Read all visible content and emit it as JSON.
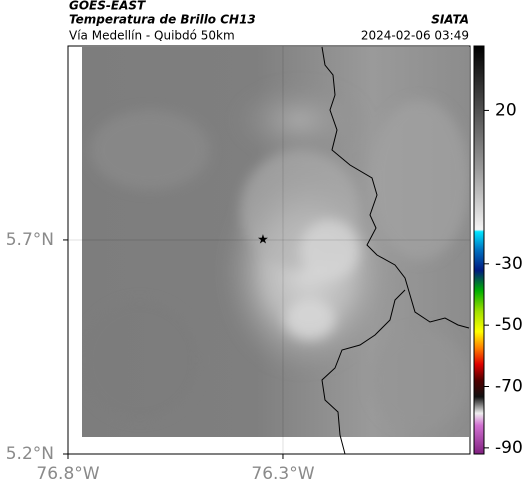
{
  "header": {
    "source": "GOES-EAST",
    "title": "Temperatura de Brillo CH13",
    "subtitle": "Vía Medellín - Quibdó 50km",
    "credit": "SIATA",
    "timestamp": "2024-02-06 03:49"
  },
  "map": {
    "xlim": [
      -76.8,
      -75.865
    ],
    "ylim": [
      5.2,
      6.153
    ],
    "xticks": [
      {
        "value": -76.8,
        "label": "76.8°W"
      },
      {
        "value": -76.3,
        "label": "76.3°W"
      }
    ],
    "yticks": [
      {
        "value": 5.2,
        "label": "5.2°N"
      },
      {
        "value": 5.7,
        "label": "5.7°N"
      }
    ],
    "grid": true
  },
  "colorbar": {
    "lim": [
      -92,
      41
    ],
    "ticks": [
      20,
      -30,
      -50,
      -70,
      -90
    ]
  }
}
